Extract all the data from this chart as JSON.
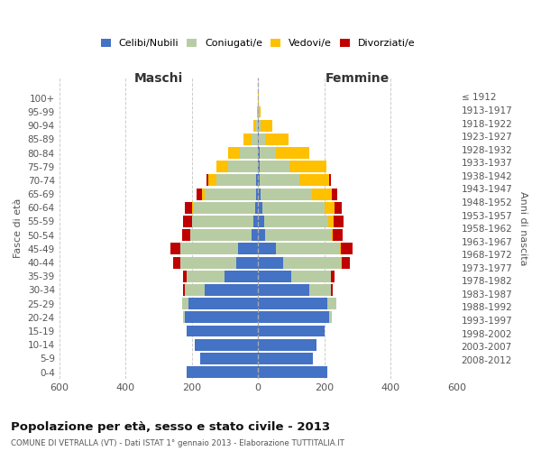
{
  "age_groups": [
    "0-4",
    "5-9",
    "10-14",
    "15-19",
    "20-24",
    "25-29",
    "30-34",
    "35-39",
    "40-44",
    "45-49",
    "50-54",
    "55-59",
    "60-64",
    "65-69",
    "70-74",
    "75-79",
    "80-84",
    "85-89",
    "90-94",
    "95-99",
    "100+"
  ],
  "birth_years": [
    "2008-2012",
    "2003-2007",
    "1998-2002",
    "1993-1997",
    "1988-1992",
    "1983-1987",
    "1978-1982",
    "1973-1977",
    "1968-1972",
    "1963-1967",
    "1958-1962",
    "1953-1957",
    "1948-1952",
    "1943-1947",
    "1938-1942",
    "1933-1937",
    "1928-1932",
    "1923-1927",
    "1918-1922",
    "1913-1917",
    "≤ 1912"
  ],
  "males_celibe": [
    215,
    175,
    190,
    215,
    220,
    210,
    160,
    100,
    65,
    60,
    20,
    15,
    10,
    5,
    5,
    0,
    0,
    0,
    0,
    0,
    0
  ],
  "males_coniugato": [
    0,
    0,
    0,
    0,
    5,
    20,
    60,
    115,
    170,
    175,
    185,
    185,
    185,
    155,
    120,
    90,
    55,
    20,
    5,
    2,
    0
  ],
  "males_vedovo": [
    0,
    0,
    0,
    0,
    0,
    0,
    0,
    0,
    0,
    0,
    0,
    0,
    5,
    10,
    25,
    35,
    35,
    25,
    10,
    2,
    0
  ],
  "males_divorziato": [
    0,
    0,
    0,
    0,
    0,
    0,
    5,
    10,
    20,
    30,
    25,
    25,
    20,
    15,
    5,
    0,
    0,
    0,
    0,
    0,
    0
  ],
  "females_celibe": [
    210,
    165,
    175,
    200,
    215,
    210,
    155,
    100,
    75,
    55,
    20,
    18,
    12,
    8,
    5,
    5,
    5,
    2,
    2,
    0,
    0
  ],
  "females_coniugato": [
    0,
    0,
    0,
    0,
    8,
    25,
    65,
    120,
    175,
    190,
    200,
    195,
    190,
    155,
    120,
    90,
    50,
    20,
    5,
    2,
    0
  ],
  "females_vedovo": [
    0,
    0,
    0,
    0,
    0,
    0,
    0,
    0,
    2,
    5,
    5,
    15,
    30,
    60,
    90,
    110,
    100,
    70,
    35,
    5,
    2
  ],
  "females_divorziato": [
    0,
    0,
    0,
    0,
    0,
    2,
    5,
    10,
    25,
    35,
    30,
    30,
    20,
    15,
    5,
    0,
    0,
    0,
    0,
    0,
    0
  ],
  "colors": {
    "celibe": "#4472c4",
    "coniugato": "#b8cca4",
    "vedovo": "#ffc000",
    "divorziato": "#c00000"
  },
  "legend_labels": [
    "Celibi/Nubili",
    "Coniugati/e",
    "Vedovi/e",
    "Divorziati/e"
  ],
  "title_main": "Popolazione per età, sesso e stato civile - 2013",
  "title_sub": "COMUNE DI VETRALLA (VT) - Dati ISTAT 1° gennaio 2013 - Elaborazione TUTTITALIA.IT",
  "xlabel_left": "Maschi",
  "xlabel_right": "Femmine",
  "ylabel_left": "Fasce di età",
  "ylabel_right": "Anni di nascita",
  "xlim": 600,
  "bg_color": "#ffffff",
  "grid_color": "#cccccc",
  "bar_height": 0.85
}
